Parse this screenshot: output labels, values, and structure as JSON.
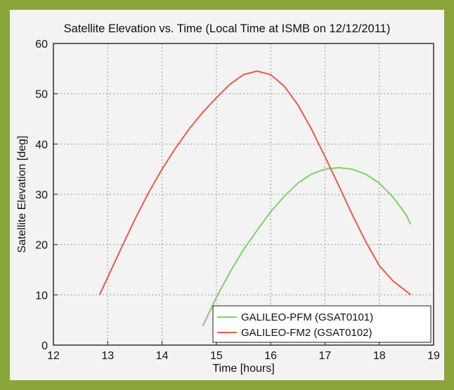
{
  "chart_data": {
    "type": "line",
    "title": "Satellite Elevation vs. Time (Local Time at ISMB on 12/12/2011)",
    "xlabel": "Time [hours]",
    "ylabel": "Satellite Elevation [deg]",
    "xlim": [
      12,
      19
    ],
    "ylim": [
      0,
      60
    ],
    "xticks": [
      12,
      13,
      14,
      15,
      16,
      17,
      18,
      19
    ],
    "yticks": [
      0,
      10,
      20,
      30,
      40,
      50,
      60
    ],
    "grid": true,
    "legend_position": "bottom-right",
    "series": [
      {
        "name": "GALILEO-PFM (GSAT0101)",
        "color": "#7bd36a",
        "x": [
          14.75,
          15.0,
          15.25,
          15.5,
          15.75,
          16.0,
          16.25,
          16.5,
          16.75,
          17.0,
          17.25,
          17.5,
          17.75,
          18.0,
          18.25,
          18.5,
          18.58
        ],
        "y": [
          3.8,
          9.5,
          14.5,
          19.0,
          22.8,
          26.5,
          29.6,
          32.2,
          34.0,
          35.0,
          35.3,
          35.0,
          34.0,
          32.2,
          29.5,
          25.8,
          24.0
        ]
      },
      {
        "name": "GALILEO-FM2 (GSAT0102)",
        "color": "#ef5a45",
        "x": [
          12.85,
          13.0,
          13.25,
          13.5,
          13.75,
          14.0,
          14.25,
          14.5,
          14.75,
          15.0,
          15.25,
          15.5,
          15.75,
          16.0,
          16.25,
          16.5,
          16.75,
          17.0,
          17.25,
          17.5,
          17.75,
          18.0,
          18.25,
          18.58
        ],
        "y": [
          10.0,
          13.5,
          19.3,
          25.0,
          30.3,
          35.0,
          39.2,
          43.0,
          46.3,
          49.2,
          51.9,
          53.8,
          54.5,
          53.8,
          51.5,
          47.8,
          43.0,
          37.5,
          31.8,
          26.0,
          20.6,
          15.8,
          12.8,
          10.0
        ]
      }
    ]
  }
}
